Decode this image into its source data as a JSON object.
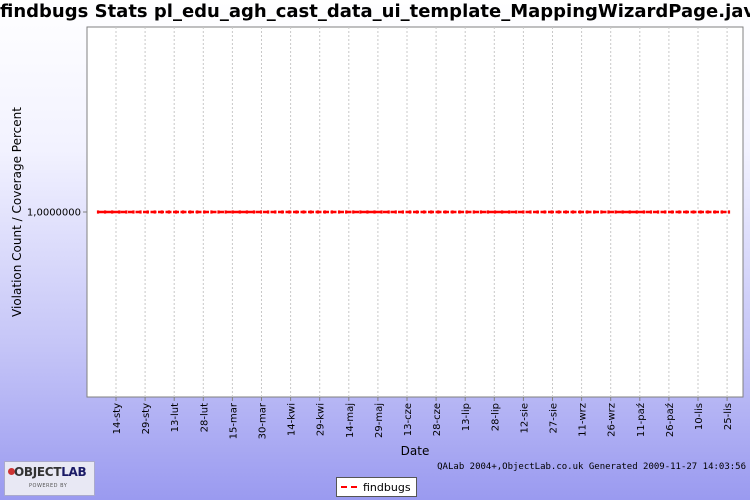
{
  "chart_data": {
    "type": "line",
    "title": "findbugs  Stats pl_edu_agh_cast_data_ui_template_MappingWizardPage.java",
    "xlabel": "Date",
    "ylabel": "Violation Count / Coverage Percent",
    "categories": [
      "14-sty",
      "29-sty",
      "13-lut",
      "28-lut",
      "15-mar",
      "30-mar",
      "14-kwi",
      "29-kwi",
      "14-maj",
      "29-maj",
      "13-cze",
      "28-cze",
      "13-lip",
      "28-lip",
      "12-sie",
      "27-sie",
      "11-wrz",
      "26-wrz",
      "11-paź",
      "26-paź",
      "10-lis",
      "25-lis"
    ],
    "y_tick_labels": [
      "1,0000000"
    ],
    "series": [
      {
        "name": "findbugs",
        "color": "#ff0000",
        "constant_value": 1.0
      }
    ],
    "grid": true,
    "legend_position": "bottom"
  },
  "footer": {
    "credit": "QALab 2004+,ObjectLab.co.uk Generated 2009-11-27 14:03:56"
  },
  "logo": {
    "main_object": "OBJECT",
    "main_lab": "LAB",
    "sub": "POWERED BY"
  }
}
